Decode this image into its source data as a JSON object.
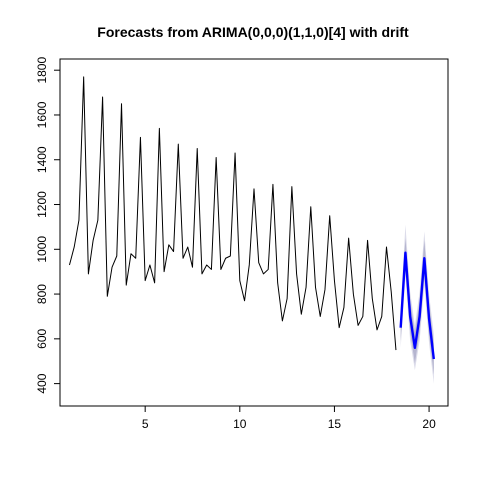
{
  "chart_data": {
    "type": "line",
    "title": "Forecasts from ARIMA(0,0,0)(1,1,0)[4] with drift",
    "xlabel": "",
    "ylabel": "",
    "xlim": [
      0.5,
      21.0
    ],
    "ylim": [
      300,
      1850
    ],
    "x_ticks": [
      5,
      10,
      15,
      20
    ],
    "y_ticks": [
      400,
      600,
      800,
      1000,
      1200,
      1400,
      1600,
      1800
    ],
    "grid": false,
    "legend": "none",
    "series": [
      {
        "role": "observed",
        "color": "#000000",
        "x": [
          1.0,
          1.25,
          1.5,
          1.75,
          2.0,
          2.25,
          2.5,
          2.75,
          3.0,
          3.25,
          3.5,
          3.75,
          4.0,
          4.25,
          4.5,
          4.75,
          5.0,
          5.25,
          5.5,
          5.75,
          6.0,
          6.25,
          6.5,
          6.75,
          7.0,
          7.25,
          7.5,
          7.75,
          8.0,
          8.25,
          8.5,
          8.75,
          9.0,
          9.25,
          9.5,
          9.75,
          10.0,
          10.25,
          10.5,
          10.75,
          11.0,
          11.25,
          11.5,
          11.75,
          12.0,
          12.25,
          12.5,
          12.75,
          13.0,
          13.25,
          13.5,
          13.75,
          14.0,
          14.25,
          14.5,
          14.75,
          15.0,
          15.25,
          15.5,
          15.75,
          16.0,
          16.25,
          16.5,
          16.75,
          17.0,
          17.25,
          17.5,
          17.75,
          18.0,
          18.25
        ],
        "values": [
          930,
          1010,
          1130,
          1770,
          890,
          1040,
          1130,
          1680,
          790,
          920,
          970,
          1650,
          840,
          980,
          960,
          1500,
          860,
          930,
          850,
          1540,
          900,
          1020,
          990,
          1470,
          960,
          1010,
          920,
          1450,
          890,
          930,
          910,
          1410,
          910,
          960,
          970,
          1430,
          860,
          770,
          930,
          1270,
          940,
          890,
          910,
          1290,
          850,
          680,
          780,
          1280,
          890,
          710,
          830,
          1190,
          830,
          700,
          820,
          1150,
          860,
          650,
          740,
          1050,
          800,
          660,
          700,
          1040,
          780,
          640,
          700,
          1010,
          810,
          550
        ]
      },
      {
        "role": "forecast",
        "color": "#0000ff",
        "x": [
          18.5,
          18.75,
          19.0,
          19.25,
          19.5,
          19.75,
          20.0,
          20.25
        ],
        "values": [
          650,
          985,
          700,
          560,
          700,
          960,
          690,
          510
        ]
      }
    ],
    "intervals": [
      {
        "level": 95,
        "color": "#dcdcea",
        "x": [
          18.5,
          18.75,
          19.0,
          19.25,
          19.5,
          19.75,
          20.0,
          20.25
        ],
        "lower": [
          560,
          880,
          590,
          460,
          590,
          840,
          580,
          400
        ],
        "upper": [
          740,
          1110,
          810,
          660,
          810,
          1080,
          800,
          620
        ]
      },
      {
        "level": 80,
        "color": "#b5b5cf",
        "x": [
          18.5,
          18.75,
          19.0,
          19.25,
          19.5,
          19.75,
          20.0,
          20.25
        ],
        "lower": [
          590,
          920,
          630,
          490,
          630,
          880,
          620,
          440
        ],
        "upper": [
          710,
          1050,
          770,
          630,
          770,
          1040,
          760,
          580
        ]
      }
    ]
  }
}
